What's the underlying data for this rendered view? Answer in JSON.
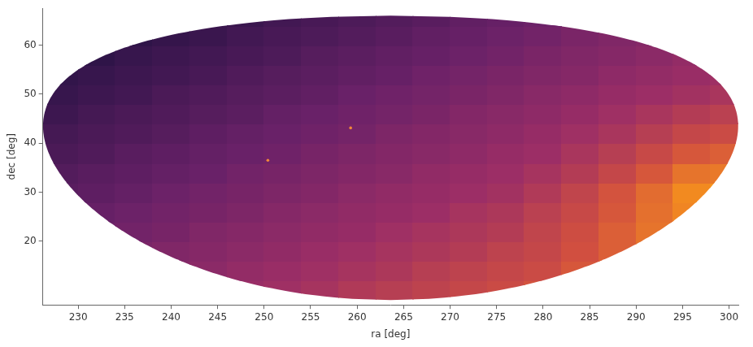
{
  "chart_data": {
    "type": "heatmap",
    "x_label": "ra [deg]",
    "y_label": "dec [deg]",
    "xlim": [
      226.2,
      301
    ],
    "ylim": [
      7,
      67.5
    ],
    "xticks": [
      230,
      235,
      240,
      245,
      250,
      255,
      260,
      265,
      270,
      275,
      280,
      285,
      290,
      295,
      300
    ],
    "yticks": [
      20,
      30,
      40,
      50,
      60
    ],
    "grid": false,
    "x_bins": [
      226,
      230,
      234,
      238,
      242,
      246,
      250,
      254,
      258,
      262,
      266,
      270,
      274,
      278,
      282,
      286,
      290,
      294,
      298,
      302
    ],
    "y_bins": [
      8,
      12,
      16,
      20,
      24,
      28,
      32,
      36,
      40,
      44,
      48,
      52,
      56,
      60,
      64,
      68
    ],
    "cells": [
      [
        null,
        null,
        null,
        null,
        null,
        59,
        61,
        63,
        66,
        68,
        70,
        72,
        74,
        77,
        null,
        null,
        null,
        null,
        null
      ],
      [
        null,
        null,
        null,
        52,
        54,
        57,
        59,
        61,
        63,
        65,
        68,
        70,
        72,
        74,
        78,
        82,
        null,
        null,
        null
      ],
      [
        null,
        null,
        48,
        50,
        52,
        54,
        56,
        59,
        61,
        63,
        65,
        67,
        70,
        72,
        76,
        80,
        84,
        null,
        null
      ],
      [
        null,
        43,
        45,
        47,
        50,
        52,
        54,
        56,
        58,
        61,
        63,
        65,
        67,
        71,
        75,
        80,
        85,
        null,
        null
      ],
      [
        null,
        41,
        43,
        45,
        47,
        49,
        52,
        54,
        56,
        58,
        60,
        63,
        65,
        69,
        73,
        78,
        84,
        89,
        null
      ],
      [
        36,
        38,
        40,
        43,
        45,
        47,
        49,
        51,
        54,
        56,
        58,
        60,
        62,
        66,
        71,
        77,
        83,
        90,
        92
      ],
      [
        34,
        36,
        38,
        40,
        42,
        45,
        47,
        49,
        51,
        53,
        56,
        58,
        60,
        63,
        67,
        72,
        78,
        85,
        86
      ],
      [
        31,
        33,
        36,
        38,
        40,
        42,
        44,
        47,
        49,
        51,
        53,
        55,
        58,
        60,
        64,
        68,
        73,
        78,
        80
      ],
      [
        29,
        31,
        33,
        35,
        38,
        40,
        42,
        44,
        46,
        49,
        51,
        53,
        55,
        58,
        61,
        64,
        68,
        72,
        74
      ],
      [
        26,
        29,
        31,
        33,
        35,
        37,
        40,
        42,
        44,
        46,
        48,
        51,
        53,
        55,
        58,
        61,
        64,
        67,
        69
      ],
      [
        24,
        26,
        28,
        31,
        33,
        35,
        37,
        39,
        42,
        44,
        46,
        48,
        50,
        53,
        55,
        58,
        60,
        62,
        64
      ],
      [
        22,
        24,
        26,
        28,
        30,
        33,
        35,
        37,
        39,
        41,
        44,
        46,
        48,
        50,
        52,
        55,
        57,
        59,
        61
      ],
      [
        null,
        21,
        24,
        26,
        28,
        30,
        32,
        35,
        37,
        39,
        41,
        43,
        45,
        48,
        50,
        52,
        54,
        57,
        null
      ],
      [
        null,
        null,
        21,
        23,
        25,
        28,
        30,
        32,
        34,
        36,
        39,
        41,
        43,
        45,
        48,
        50,
        52,
        null,
        null
      ],
      [
        null,
        null,
        null,
        null,
        null,
        25,
        28,
        30,
        32,
        34,
        36,
        39,
        41,
        43,
        null,
        null,
        null,
        null,
        null
      ]
    ],
    "footprint": {
      "center": [
        263.6,
        37
      ],
      "radius": 29
    },
    "points": [
      {
        "ra": 250.4,
        "dec": 36.5
      },
      {
        "ra": 259.3,
        "dec": 43.1
      }
    ]
  }
}
